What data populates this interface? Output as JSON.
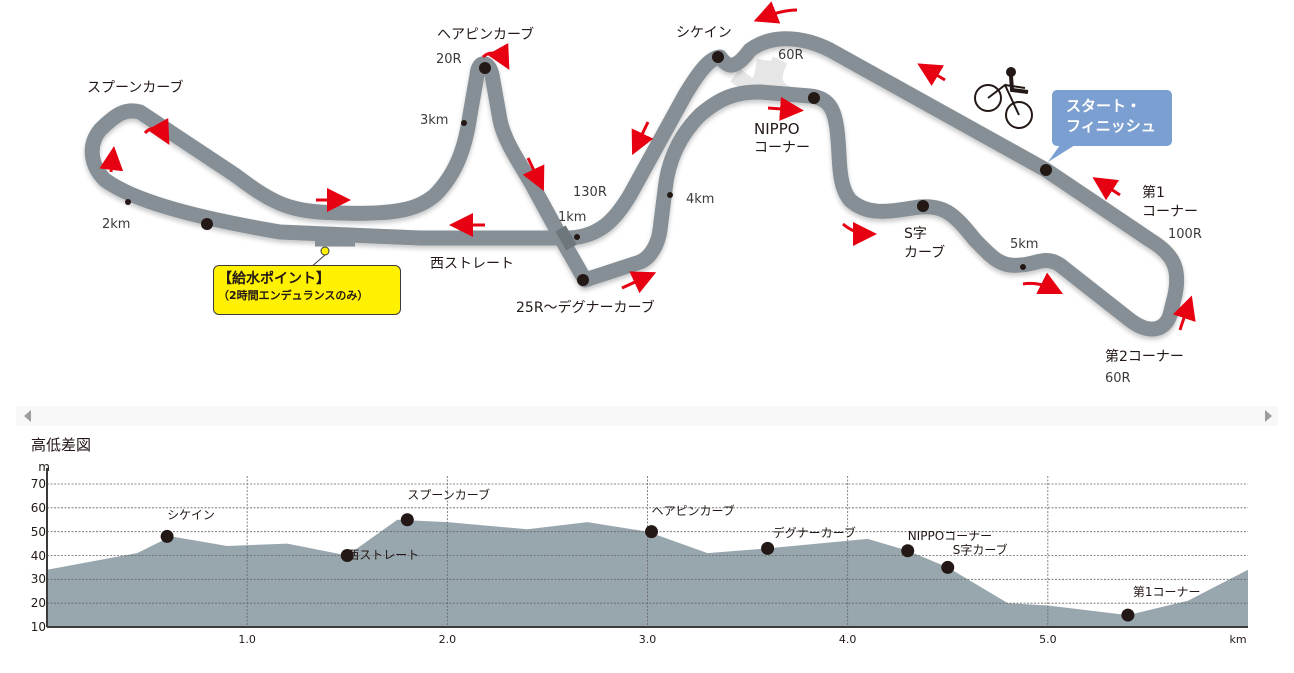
{
  "map": {
    "labels": {
      "spoon": "スプーンカーブ",
      "hairpin": "ヘアピンカーブ",
      "r20": "20R",
      "km3": "3km",
      "km2": "2km",
      "shikein": "シケイン",
      "r60top": "60R",
      "nippo1": "NIPPO",
      "nippo2": "コーナー",
      "r130": "130R",
      "km1": "1km",
      "km4": "4km",
      "nishi": "西ストレート",
      "degner": "25R～デグナーカーブ",
      "s1": "S字",
      "s2": "カーブ",
      "km5": "5km",
      "c1a": "第1",
      "c1b": "コーナー",
      "r100": "100R",
      "c2": "第2コーナー",
      "r60": "60R"
    },
    "start_finish": {
      "line1": "スタート・",
      "line2": "フィニッシュ",
      "color": "#7b9fd0"
    },
    "water_point": {
      "line1": "【給水ポイント】",
      "line2": "（2時間エンデュランスのみ）",
      "color": "#fff100"
    },
    "track_color": "#858f95",
    "arrow_color": "#e60012"
  },
  "scrollbar": {
    "left_arrow": "◀",
    "right_arrow": "▶"
  },
  "chart_title": "高低差図",
  "chart_data": {
    "type": "area",
    "title": "高低差図",
    "xlabel": "km",
    "ylabel": "m",
    "xlim": [
      0,
      6.0
    ],
    "ylim": [
      10,
      70
    ],
    "x_ticks": [
      "1.0",
      "2.0",
      "3.0",
      "4.0",
      "5.0"
    ],
    "y_ticks": [
      "70",
      "60",
      "50",
      "40",
      "30",
      "20",
      "10"
    ],
    "grid": true,
    "fill_color": "#98a6ae",
    "profile": {
      "x": [
        0,
        0.45,
        0.62,
        0.9,
        1.2,
        1.5,
        1.75,
        2.0,
        2.4,
        2.7,
        3.0,
        3.3,
        3.6,
        4.1,
        4.3,
        4.5,
        4.8,
        5.0,
        5.4,
        5.7,
        6.0
      ],
      "y": [
        34,
        41,
        48,
        44,
        45,
        40,
        55,
        54,
        51,
        54,
        50,
        41,
        43,
        47,
        42,
        35,
        20,
        19,
        15,
        21,
        34
      ]
    },
    "points": [
      {
        "name": "シケイン",
        "x": 0.6,
        "y": 48
      },
      {
        "name": "西ストレート",
        "x": 1.5,
        "y": 40
      },
      {
        "name": "スプーンカーブ",
        "x": 1.8,
        "y": 55
      },
      {
        "name": "ヘアピンカーブ",
        "x": 3.02,
        "y": 50
      },
      {
        "name": "デグナーカーブ",
        "x": 3.6,
        "y": 43
      },
      {
        "name": "NIPPOコーナー",
        "x": 4.3,
        "y": 42
      },
      {
        "name": "S字カーブ",
        "x": 4.5,
        "y": 35
      },
      {
        "name": "第1コーナー",
        "x": 5.4,
        "y": 15
      }
    ]
  }
}
